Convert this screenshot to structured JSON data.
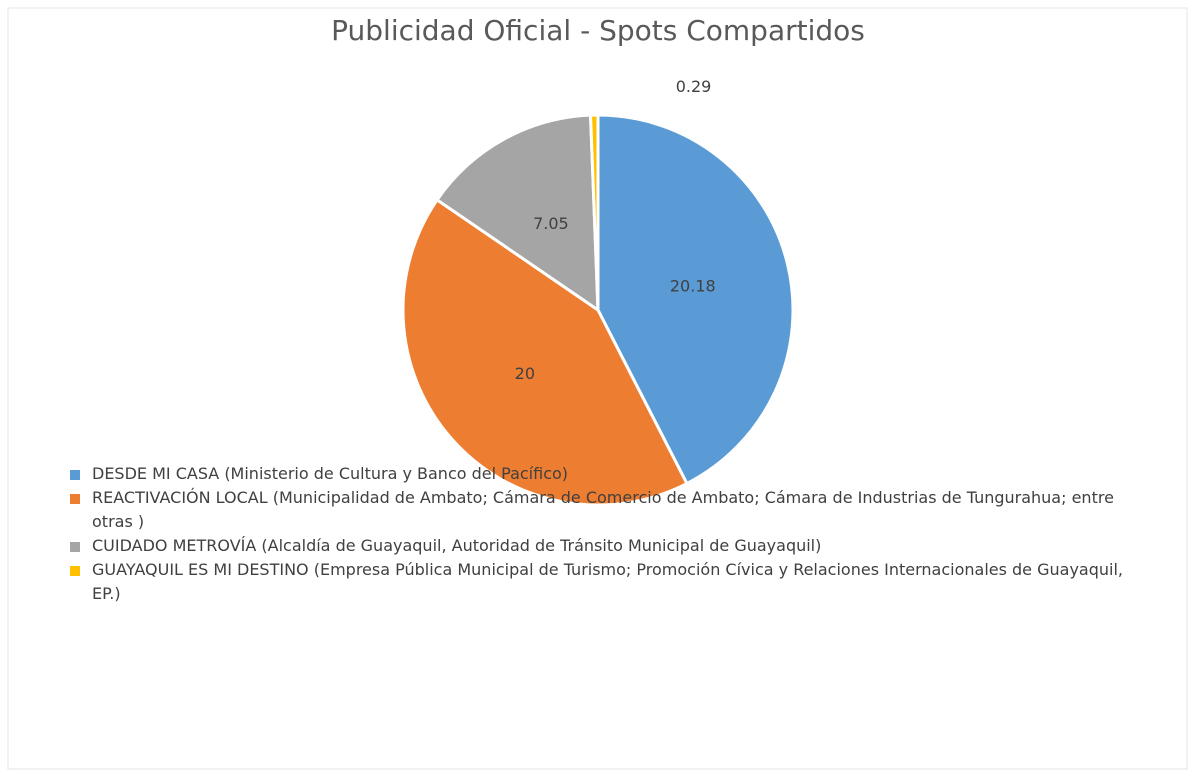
{
  "chart_data": {
    "type": "pie",
    "title": "Publicidad Oficial - Spots Compartidos",
    "series": [
      {
        "name": "DESDE MI CASA (Ministerio de Cultura y Banco del Pacífico)",
        "color": "#5b9bd5",
        "values": [
          20.18
        ]
      },
      {
        "name": "REACTIVACIÓN LOCAL (Municipalidad de Ambato; Cámara de Comercio de Ambato; Cámara de Industrias de Tungurahua; entre otras )",
        "color": "#ed7d31",
        "values": [
          20
        ]
      },
      {
        "name": "CUIDADO METROVÍA  (Alcaldía de Guayaquil, Autoridad de Tránsito Municipal de Guayaquil)",
        "color": "#a5a5a5",
        "values": [
          7.05
        ]
      },
      {
        "name": "GUAYAQUIL ES MI DESTINO (Empresa Pública Municipal de Turismo; Promoción Cívica y Relaciones Internacionales de Guayaquil, EP.)",
        "color": "#ffc000",
        "values": [
          0.29
        ]
      }
    ],
    "legend": "bottom-left"
  }
}
